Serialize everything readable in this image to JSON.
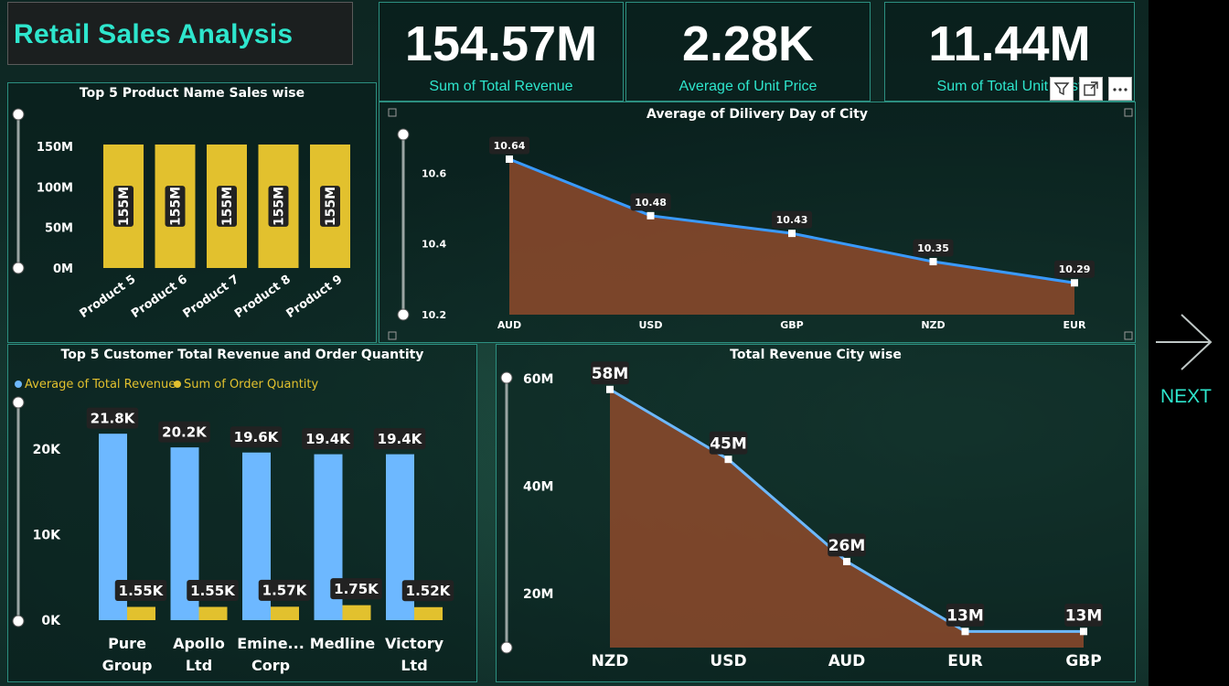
{
  "dashboard": {
    "title": "Retail Sales  Analysis",
    "next_label": "NEXT"
  },
  "kpis": [
    {
      "value": "154.57M",
      "label": "Sum of Total Revenue"
    },
    {
      "value": "2.28K",
      "label": "Average of Unit Price"
    },
    {
      "value": "11.44M",
      "label": "Sum of Total Unit Cost"
    }
  ],
  "colors": {
    "accent": "#2ee6cd",
    "bar_yellow": "#e2c12e",
    "bar_blue": "#6db8ff",
    "line_blue": "#3a9aff",
    "area_orange": "#8e4a2c"
  },
  "chart_data": [
    {
      "id": "top5-products",
      "type": "bar",
      "title": "Top 5 Product Name Sales wise",
      "categories": [
        "Product 5",
        "Product 6",
        "Product 7",
        "Product 8",
        "Product 9"
      ],
      "values": [
        155,
        155,
        155,
        155,
        155
      ],
      "data_labels": [
        "155M",
        "155M",
        "155M",
        "155M",
        "155M"
      ],
      "y_ticks": [
        "150M",
        "100M",
        "50M",
        "0M"
      ],
      "ylim": [
        0,
        150
      ],
      "color": "#e2c12e"
    },
    {
      "id": "delivery-days",
      "type": "area",
      "title": "Average of Dilivery Day of City",
      "categories": [
        "AUD",
        "USD",
        "GBP",
        "NZD",
        "EUR"
      ],
      "values": [
        10.64,
        10.48,
        10.43,
        10.35,
        10.29
      ],
      "data_labels": [
        "10.64",
        "10.48",
        "10.43",
        "10.35",
        "10.29"
      ],
      "y_ticks": [
        "10.6",
        "10.4",
        "10.2"
      ],
      "ylim": [
        10.2,
        10.64
      ]
    },
    {
      "id": "top5-customers",
      "type": "bar",
      "title": "Top 5 Customer Total Revenue and Order Quantity",
      "legend": [
        "Average of Total Revenue",
        "Sum of Order Quantity"
      ],
      "categories": [
        [
          "Pure",
          "Group"
        ],
        [
          "Apollo",
          "Ltd"
        ],
        [
          "Emine...",
          "Corp"
        ],
        [
          "Medline"
        ],
        [
          "Victory",
          "Ltd"
        ]
      ],
      "series": [
        {
          "name": "Average of Total Revenue",
          "values": [
            21.8,
            20.2,
            19.6,
            19.4,
            19.4
          ],
          "labels": [
            "21.8K",
            "20.2K",
            "19.6K",
            "19.4K",
            "19.4K"
          ]
        },
        {
          "name": "Sum of Order Quantity",
          "values": [
            1.55,
            1.55,
            1.57,
            1.75,
            1.52
          ],
          "labels": [
            "1.55K",
            "1.55K",
            "1.57K",
            "1.75K",
            "1.52K"
          ]
        }
      ],
      "y_ticks": [
        "20K",
        "10K",
        "0K"
      ],
      "ylim": [
        0,
        22
      ]
    },
    {
      "id": "revenue-city",
      "type": "area",
      "title": "Total Revenue City wise",
      "categories": [
        "NZD",
        "USD",
        "AUD",
        "EUR",
        "GBP"
      ],
      "values": [
        58,
        45,
        26,
        13,
        13
      ],
      "data_labels": [
        "58M",
        "45M",
        "26M",
        "13M",
        "13M"
      ],
      "y_ticks": [
        "60M",
        "40M",
        "20M"
      ],
      "ylim": [
        10,
        60
      ]
    }
  ]
}
